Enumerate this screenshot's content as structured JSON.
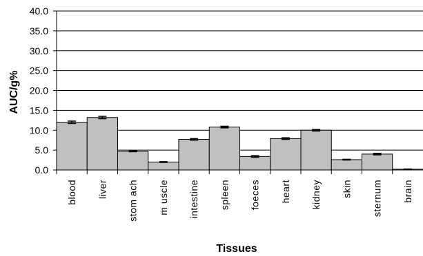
{
  "chart_data": {
    "type": "bar",
    "title": "",
    "xlabel": "Tissues",
    "ylabel": "AUC/g%",
    "ylim": [
      0,
      40
    ],
    "yticks": [
      "0.0",
      "5.0",
      "10.0",
      "15.0",
      "20.0",
      "25.0",
      "30.0",
      "35.0",
      "40.0"
    ],
    "grid": true,
    "legend": "none",
    "categories": [
      "blood",
      "liver",
      "stomach",
      "muscle",
      "intestine",
      "spleen",
      "foeces",
      "heart",
      "kidney",
      "skin",
      "sternum",
      "brain"
    ],
    "category_labels": [
      "blood",
      "liver",
      "stom ach",
      "m uscle",
      "intestine",
      "spleen",
      "foeces",
      "heart",
      "kidney",
      "skin",
      "sternum",
      "brain"
    ],
    "series": [
      {
        "values": [
          12.0,
          13.2,
          4.7,
          2.0,
          7.7,
          10.8,
          3.4,
          7.9,
          10.0,
          2.6,
          4.0,
          0.2
        ],
        "errors": [
          0.3,
          0.3,
          0.1,
          0.1,
          0.2,
          0.2,
          0.2,
          0.2,
          0.2,
          0.1,
          0.2,
          0.05
        ]
      }
    ],
    "colors": {
      "bar": "#c0c0c0",
      "bar_edge": "#000000",
      "grid": "#000000"
    }
  }
}
